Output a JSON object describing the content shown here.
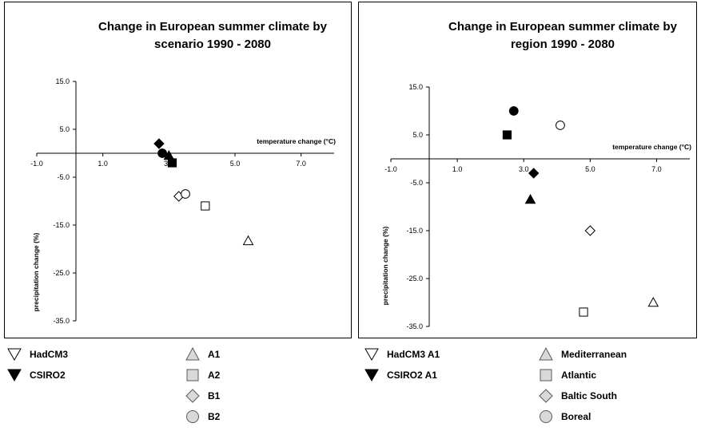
{
  "chart_data": [
    {
      "type": "scatter",
      "title": "Change in European summer climate by scenario 1990 - 2080",
      "xlabel": "temperature change (°C)",
      "ylabel": "precipitation change (%)",
      "xlim": [
        -1.0,
        8.0
      ],
      "ylim": [
        -40,
        17
      ],
      "xticks": [
        -1.0,
        1.0,
        3.0,
        5.0,
        7.0
      ],
      "yticks": [
        15.0,
        5.0,
        -5.0,
        -15.0,
        -25.0,
        -35.0
      ],
      "grid": false,
      "series": [
        {
          "name": "HadCM3 A1",
          "model": "HadCM3",
          "scenario": "A1",
          "x": 5.4,
          "y": -18.3
        },
        {
          "name": "HadCM3 A2",
          "model": "HadCM3",
          "scenario": "A2",
          "x": 4.1,
          "y": -11.0
        },
        {
          "name": "HadCM3 B1",
          "model": "HadCM3",
          "scenario": "B1",
          "x": 3.3,
          "y": -9.0
        },
        {
          "name": "HadCM3 B2",
          "model": "HadCM3",
          "scenario": "B2",
          "x": 3.5,
          "y": -8.5
        },
        {
          "name": "CSIRO2 A1",
          "model": "CSIRO2",
          "scenario": "A1",
          "x": 3.0,
          "y": -0.5
        },
        {
          "name": "CSIRO2 A2",
          "model": "CSIRO2",
          "scenario": "A2",
          "x": 3.1,
          "y": -2.0
        },
        {
          "name": "CSIRO2 B1",
          "model": "CSIRO2",
          "scenario": "B1",
          "x": 2.7,
          "y": 2.0
        },
        {
          "name": "CSIRO2 B2",
          "model": "CSIRO2",
          "scenario": "B2",
          "x": 2.8,
          "y": 0.0
        }
      ],
      "legend": {
        "models": [
          {
            "label": "HadCM3",
            "style": "open"
          },
          {
            "label": "CSIRO2",
            "style": "filled"
          }
        ],
        "groups": [
          {
            "label": "A1",
            "shape": "triangle"
          },
          {
            "label": "A2",
            "shape": "square"
          },
          {
            "label": "B1",
            "shape": "diamond"
          },
          {
            "label": "B2",
            "shape": "circle"
          }
        ]
      }
    },
    {
      "type": "scatter",
      "title": "Change in European summer climate by region 1990 - 2080",
      "xlabel": "temperature change (°C)",
      "ylabel": "precipitation change (%)",
      "xlim": [
        -1.0,
        8.0
      ],
      "ylim": [
        -40,
        17
      ],
      "xticks": [
        -1.0,
        1.0,
        3.0,
        5.0,
        7.0
      ],
      "yticks": [
        15.0,
        5.0,
        -5.0,
        -15.0,
        -25.0,
        -35.0
      ],
      "grid": false,
      "series": [
        {
          "name": "HadCM3 A1 Mediterranean",
          "model": "HadCM3 A1",
          "region": "Mediterranean",
          "x": 6.9,
          "y": -30.0
        },
        {
          "name": "HadCM3 A1 Atlantic",
          "model": "HadCM3 A1",
          "region": "Atlantic",
          "x": 4.8,
          "y": -32.0
        },
        {
          "name": "HadCM3 A1 Baltic South",
          "model": "HadCM3 A1",
          "region": "Baltic South",
          "x": 5.0,
          "y": -15.0
        },
        {
          "name": "HadCM3 A1 Boreal",
          "model": "HadCM3 A1",
          "region": "Boreal",
          "x": 4.1,
          "y": 7.0
        },
        {
          "name": "CSIRO2 A1 Mediterranean",
          "model": "CSIRO2 A1",
          "region": "Mediterranean",
          "x": 3.2,
          "y": -8.5
        },
        {
          "name": "CSIRO2 A1 Atlantic",
          "model": "CSIRO2 A1",
          "region": "Atlantic",
          "x": 2.5,
          "y": 5.0
        },
        {
          "name": "CSIRO2 A1 Baltic South",
          "model": "CSIRO2 A1",
          "region": "Baltic South",
          "x": 3.3,
          "y": -3.0
        },
        {
          "name": "CSIRO2 A1 Boreal",
          "model": "CSIRO2 A1",
          "region": "Boreal",
          "x": 2.7,
          "y": 10.0
        }
      ],
      "legend": {
        "models": [
          {
            "label": "HadCM3 A1",
            "style": "open"
          },
          {
            "label": "CSIRO2 A1",
            "style": "filled"
          }
        ],
        "groups": [
          {
            "label": "Mediterranean",
            "shape": "triangle"
          },
          {
            "label": "Atlantic",
            "shape": "square"
          },
          {
            "label": "Baltic South",
            "shape": "diamond"
          },
          {
            "label": "Boreal",
            "shape": "circle"
          }
        ]
      }
    }
  ]
}
